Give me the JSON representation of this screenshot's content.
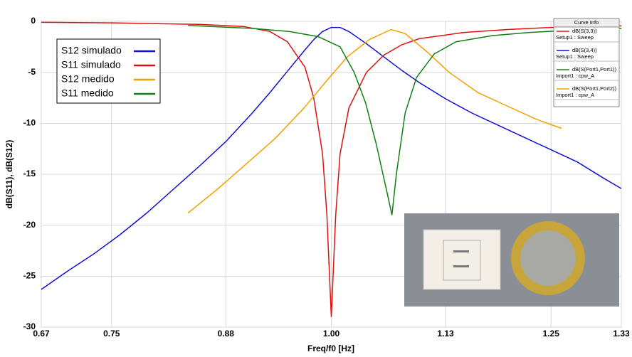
{
  "chart_data": {
    "type": "line",
    "x_label": "Freq/f0 [Hz]",
    "y_label": "dB(S11), dB(S12)",
    "xlim": [
      0.67,
      1.33
    ],
    "ylim": [
      -30,
      0
    ],
    "xticks": [
      0.67,
      0.75,
      0.88,
      {
        "value": 1,
        "label": "1.00"
      },
      1.13,
      1.25,
      1.33
    ],
    "yticks": [
      -30,
      -25,
      -20,
      -15,
      -10,
      -5,
      0
    ],
    "grid": true,
    "legend": "upper left",
    "series": [
      {
        "name": "S12 simulado",
        "color": "#1010d0",
        "x": [
          0.67,
          0.7,
          0.73,
          0.76,
          0.79,
          0.82,
          0.85,
          0.88,
          0.91,
          0.93,
          0.95,
          0.97,
          0.98,
          0.99,
          1.0,
          1.01,
          1.02,
          1.04,
          1.06,
          1.08,
          1.1,
          1.13,
          1.16,
          1.19,
          1.22,
          1.25,
          1.28,
          1.31,
          1.33
        ],
        "values": [
          -26.3,
          -24.5,
          -22.8,
          -20.9,
          -18.8,
          -16.5,
          -14.2,
          -11.8,
          -9.0,
          -7.0,
          -4.9,
          -2.8,
          -1.8,
          -1.0,
          -0.6,
          -0.6,
          -1.0,
          -2.2,
          -3.5,
          -4.8,
          -6.0,
          -7.6,
          -9.0,
          -10.2,
          -11.4,
          -12.6,
          -13.8,
          -15.4,
          -16.4
        ]
      },
      {
        "name": "S11 simulado",
        "color": "#e01010",
        "x": [
          0.67,
          0.75,
          0.85,
          0.9,
          0.93,
          0.95,
          0.97,
          0.98,
          0.99,
          0.995,
          1.0,
          1.005,
          1.01,
          1.02,
          1.04,
          1.06,
          1.08,
          1.1,
          1.15,
          1.2,
          1.25,
          1.33
        ],
        "values": [
          -0.1,
          -0.15,
          -0.3,
          -0.5,
          -1.0,
          -2.0,
          -4.5,
          -7.5,
          -13,
          -19,
          -29,
          -19,
          -13,
          -8.5,
          -5,
          -3.3,
          -2.3,
          -1.7,
          -1.1,
          -0.8,
          -0.6,
          -0.45
        ]
      },
      {
        "name": "S12 medido",
        "color": "#f5a000",
        "x": [
          0.837,
          0.87,
          0.903,
          0.936,
          0.969,
          0.993,
          1.018,
          1.043,
          1.068,
          1.084,
          1.109,
          1.134,
          1.167,
          1.2,
          1.233,
          1.262
        ],
        "values": [
          -18.8,
          -16.5,
          -14,
          -11.5,
          -8.5,
          -6,
          -3.5,
          -1.8,
          -0.8,
          -1.2,
          -3,
          -5,
          -7,
          -8.3,
          -9.6,
          -10.5
        ]
      },
      {
        "name": "S11 medido",
        "color": "#108010",
        "x": [
          0.837,
          0.911,
          0.952,
          0.985,
          1.01,
          1.026,
          1.039,
          1.051,
          1.064,
          1.069,
          1.074,
          1.084,
          1.097,
          1.117,
          1.142,
          1.183,
          1.224,
          1.266,
          1.307,
          1.33
        ],
        "values": [
          -0.4,
          -0.7,
          -1.0,
          -1.5,
          -2.5,
          -5,
          -8,
          -12,
          -17,
          -19,
          -15,
          -9,
          -5.5,
          -3.2,
          -2.0,
          -1.4,
          -1.1,
          -0.9,
          -0.8,
          -0.7
        ]
      }
    ]
  },
  "curve_info": {
    "title": "Curve Info",
    "entries": [
      {
        "name": "dB(S(3,3))",
        "source": "Setup1 : Sweep",
        "color": "#e01010"
      },
      {
        "name": "dB(S(3,4))",
        "source": "Setup1 : Sweep",
        "color": "#1010d0"
      },
      {
        "name": "dB(S(Port1,Port1))",
        "source": "Import1 : cpw_A",
        "color": "#108010"
      },
      {
        "name": "dB(S(Port1,Port2))",
        "source": "Import1 : cpw_A",
        "color": "#f5a000"
      }
    ]
  }
}
